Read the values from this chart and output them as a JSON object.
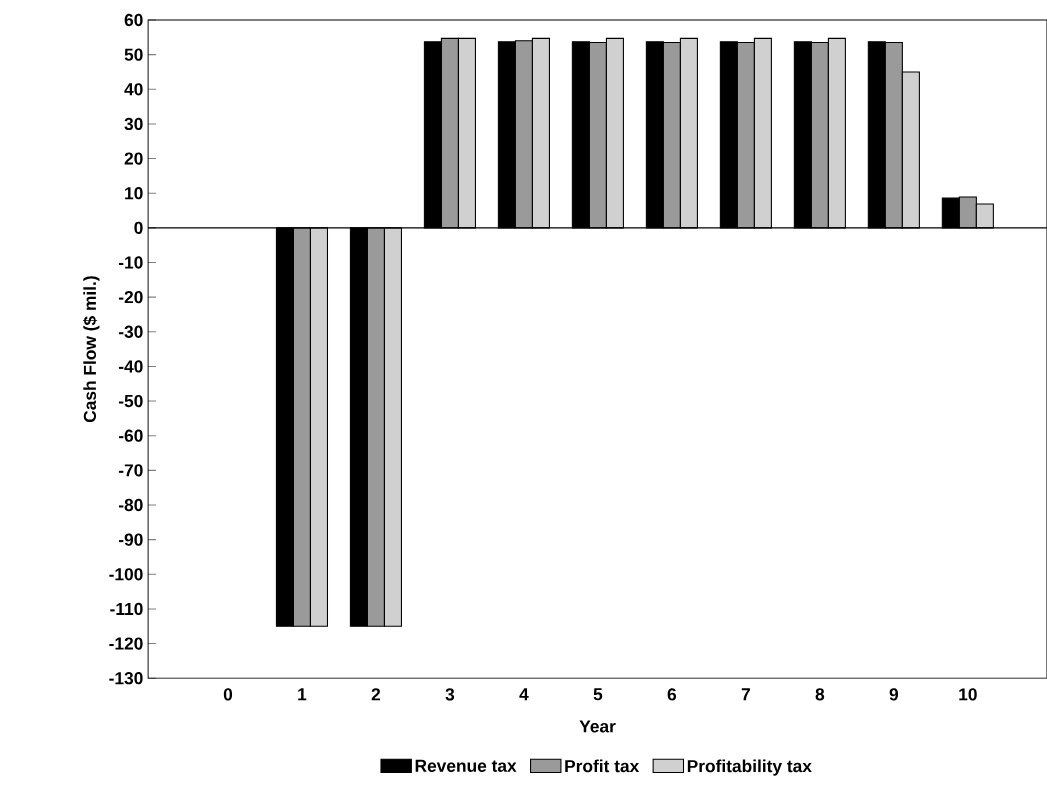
{
  "chart_data": {
    "type": "bar",
    "xlabel": "Year",
    "ylabel": "Cash Flow ($ mil.)",
    "categories": [
      "0",
      "1",
      "2",
      "3",
      "4",
      "5",
      "6",
      "7",
      "8",
      "9",
      "10"
    ],
    "series": [
      {
        "name": "Revenue tax",
        "color": "#000000",
        "values": [
          null,
          -115,
          -115,
          53.7,
          53.7,
          53.7,
          53.7,
          53.7,
          53.7,
          53.7,
          8.6
        ]
      },
      {
        "name": "Profit tax",
        "color": "#9a9a9a",
        "values": [
          null,
          -115,
          -115,
          54.7,
          54,
          53.5,
          53.5,
          53.5,
          53.5,
          53.5,
          8.9
        ]
      },
      {
        "name": "Profitability tax",
        "color": "#d0d0d0",
        "values": [
          null,
          -115,
          -115,
          54.7,
          54.7,
          54.7,
          54.7,
          54.7,
          54.7,
          45,
          6.9
        ]
      }
    ],
    "ylim": [
      -130,
      60
    ],
    "yticks": [
      -130,
      -120,
      -110,
      -100,
      -90,
      -80,
      -70,
      -60,
      -50,
      -40,
      -30,
      -20,
      -10,
      0,
      10,
      20,
      30,
      40,
      50,
      60
    ],
    "legend": "bottom"
  }
}
